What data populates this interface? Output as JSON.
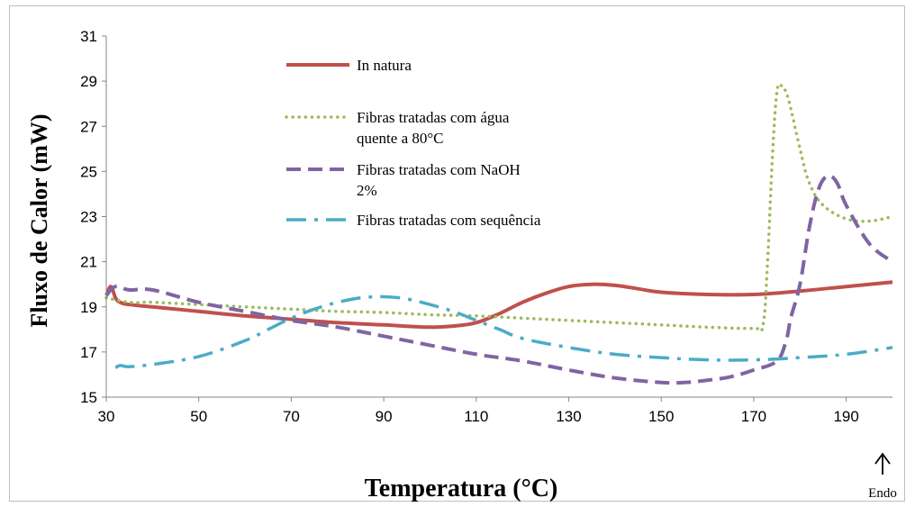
{
  "chart_data": {
    "type": "line",
    "xlabel": "Temperatura (°C)",
    "ylabel": "Fluxo de Calor (mW)",
    "xlim": [
      30,
      200
    ],
    "ylim": [
      15,
      31
    ],
    "x_ticks": [
      "30",
      "50",
      "70",
      "90",
      "110",
      "130",
      "150",
      "170",
      "190"
    ],
    "y_ticks": [
      "15",
      "17",
      "19",
      "21",
      "23",
      "25",
      "27",
      "29",
      "31"
    ],
    "grid": false,
    "legend_position": "top-center",
    "annotation": "Endo",
    "series": [
      {
        "name": "In natura",
        "color": "#c0504d",
        "style": "solid",
        "x": [
          30,
          31,
          32,
          33,
          35,
          40,
          50,
          60,
          70,
          80,
          90,
          100,
          105,
          110,
          115,
          120,
          125,
          130,
          135,
          140,
          145,
          150,
          160,
          170,
          180,
          190,
          200
        ],
        "y": [
          19.5,
          19.9,
          19.4,
          19.2,
          19.1,
          19.0,
          18.8,
          18.6,
          18.45,
          18.3,
          18.2,
          18.1,
          18.15,
          18.3,
          18.7,
          19.2,
          19.6,
          19.9,
          20.0,
          19.95,
          19.8,
          19.65,
          19.55,
          19.55,
          19.7,
          19.9,
          20.1
        ]
      },
      {
        "name": "Fibras tratadas com água quente a 80°C",
        "color": "#9bbb59",
        "style": "dotted",
        "x": [
          30,
          35,
          40,
          50,
          60,
          70,
          80,
          90,
          100,
          110,
          120,
          130,
          140,
          150,
          160,
          170,
          172,
          173,
          174,
          175,
          176,
          177,
          178,
          180,
          182,
          185,
          190,
          195,
          200
        ],
        "y": [
          19.4,
          19.2,
          19.2,
          19.1,
          19.0,
          18.9,
          18.8,
          18.75,
          18.65,
          18.6,
          18.5,
          18.4,
          18.3,
          18.2,
          18.1,
          18.05,
          18.2,
          21.0,
          25.5,
          28.5,
          28.8,
          28.5,
          27.8,
          26.0,
          24.5,
          23.5,
          22.9,
          22.8,
          23.0
        ]
      },
      {
        "name": "Fibras tratadas com NaOH 2%",
        "color": "#8064a2",
        "style": "dashed",
        "x": [
          30,
          32,
          35,
          40,
          50,
          60,
          70,
          80,
          90,
          100,
          110,
          120,
          130,
          140,
          150,
          155,
          160,
          165,
          170,
          175,
          177,
          178,
          180,
          182,
          184,
          186,
          188,
          190,
          195,
          200
        ],
        "y": [
          19.5,
          19.9,
          19.75,
          19.75,
          19.2,
          18.8,
          18.4,
          18.1,
          17.7,
          17.3,
          16.9,
          16.6,
          16.2,
          15.85,
          15.65,
          15.65,
          15.75,
          15.9,
          16.2,
          16.6,
          17.5,
          18.5,
          20.0,
          22.5,
          24.2,
          24.8,
          24.5,
          23.5,
          21.8,
          21.0
        ]
      },
      {
        "name": "Fibras tratadas com sequência",
        "color": "#4bacc6",
        "style": "dashdot",
        "x": [
          32,
          33,
          35,
          40,
          50,
          60,
          65,
          70,
          75,
          80,
          85,
          90,
          95,
          100,
          105,
          110,
          115,
          120,
          130,
          140,
          150,
          160,
          170,
          180,
          190,
          200
        ],
        "y": [
          16.3,
          16.4,
          16.35,
          16.45,
          16.8,
          17.5,
          18.0,
          18.5,
          18.9,
          19.2,
          19.4,
          19.45,
          19.35,
          19.1,
          18.8,
          18.4,
          18.0,
          17.6,
          17.2,
          16.9,
          16.75,
          16.65,
          16.65,
          16.75,
          16.9,
          17.2
        ]
      }
    ],
    "legend": [
      {
        "line1": "In natura",
        "line2": ""
      },
      {
        "line1": "Fibras tratadas com água",
        "line2": "quente a 80°C"
      },
      {
        "line1": "Fibras tratadas com NaOH",
        "line2": "2%"
      },
      {
        "line1": "Fibras tratadas com sequência",
        "line2": ""
      }
    ]
  }
}
